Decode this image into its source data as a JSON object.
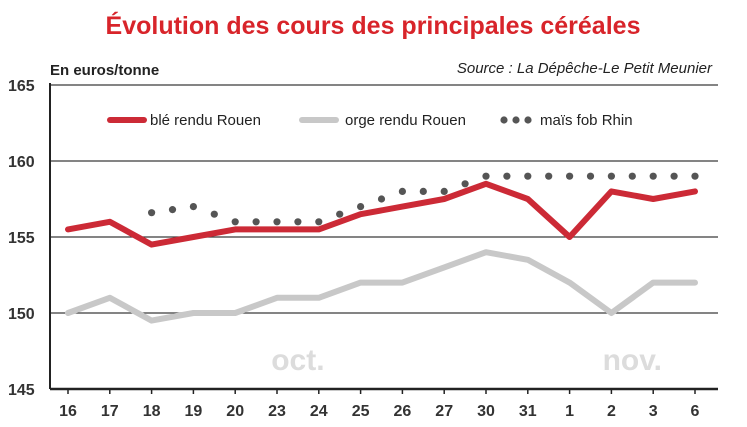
{
  "chart_data": {
    "type": "line",
    "title": "Évolution des cours des principales céréales",
    "ylabel": "En euros/tonne",
    "source": "Source : La Dépêche-Le Petit Meunier",
    "categories": [
      "16",
      "17",
      "18",
      "19",
      "20",
      "23",
      "24",
      "25",
      "26",
      "27",
      "30",
      "31",
      "1",
      "2",
      "3",
      "6"
    ],
    "yticks": [
      "165",
      "160",
      "155",
      "150",
      "145"
    ],
    "ylim": [
      145,
      165
    ],
    "grid": true,
    "legend_position": "top",
    "months": [
      "oct.",
      "nov."
    ],
    "series": [
      {
        "name": "blé rendu Rouen",
        "color": "#cc2a36",
        "style": "solid",
        "values": [
          155.5,
          156,
          154.5,
          155,
          155.5,
          155.5,
          155.5,
          156.5,
          157,
          157.5,
          158.5,
          157.5,
          155,
          158,
          157.5,
          158
        ]
      },
      {
        "name": "orge rendu Rouen",
        "color": "#c8c8c8",
        "style": "solid",
        "values": [
          150,
          151,
          149.5,
          150,
          150,
          151,
          151,
          152,
          152,
          153,
          154,
          153.5,
          152,
          150,
          152,
          152
        ]
      },
      {
        "name": "maïs fob Rhin",
        "color": "#555555",
        "style": "dotted",
        "values": [
          null,
          null,
          156.6,
          157,
          156,
          156,
          156,
          157,
          158,
          158,
          159,
          159,
          159,
          159,
          159,
          159
        ]
      }
    ]
  }
}
